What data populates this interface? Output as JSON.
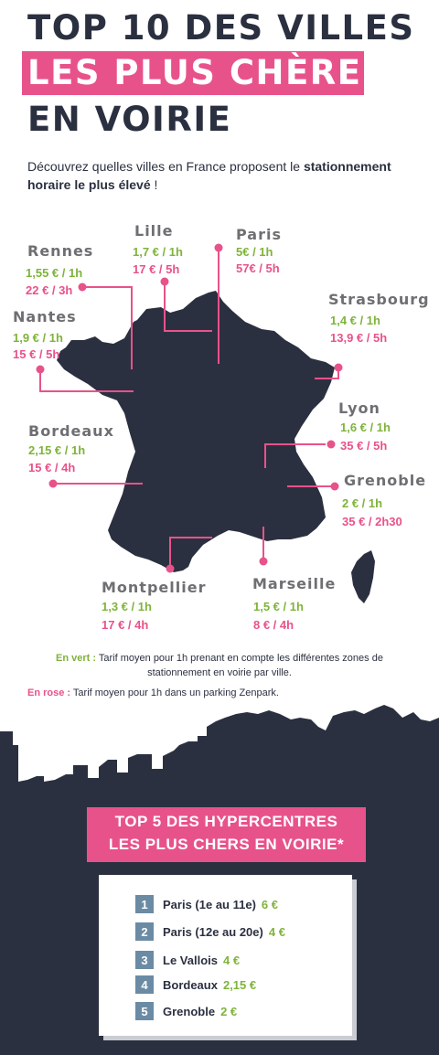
{
  "title": {
    "line1": "TOP 10 DES VILLES",
    "line2": "LES PLUS CHÈRES",
    "line3": "EN VOIRIE"
  },
  "intro": {
    "part1": "Découvrez quelles villes en France proposent le ",
    "bold": "stationnement horaire le plus élevé",
    "part2": " !"
  },
  "cities": [
    {
      "name": "Rennes",
      "green": "1,55 € / 1h",
      "pink": "22 € / 3h"
    },
    {
      "name": "Lille",
      "green": "1,7 € / 1h",
      "pink": "17 € / 5h"
    },
    {
      "name": "Paris",
      "green": "5€ / 1h",
      "pink": "57€ / 5h"
    },
    {
      "name": "Strasbourg",
      "green": "1,4 € / 1h",
      "pink": "13,9 € / 5h"
    },
    {
      "name": "Nantes",
      "green": "1,9 € / 1h",
      "pink": "15 € / 5h"
    },
    {
      "name": "Lyon",
      "green": "1,6 € / 1h",
      "pink": "35 € / 5h"
    },
    {
      "name": "Bordeaux",
      "green": "2,15 € / 1h",
      "pink": "15 € / 4h"
    },
    {
      "name": "Grenoble",
      "green": "2 € / 1h",
      "pink": "35 € / 2h30"
    },
    {
      "name": "Montpellier",
      "green": "1,3 € / 1h",
      "pink": "17 € / 4h"
    },
    {
      "name": "Marseille",
      "green": "1,5 € / 1h",
      "pink": "8 € / 4h"
    }
  ],
  "legend": {
    "green_label": "En vert :",
    "green_text1": " Tarif moyen pour 1h prenant en compte les différentes zones de",
    "green_text2": "stationnement en voirie par ville.",
    "pink_label": "En rose :",
    "pink_text": " Tarif moyen pour 1h dans un parking Zenpark."
  },
  "top5": {
    "title_line1": "TOP 5 DES HYPERCENTRES",
    "title_line2": "LES PLUS CHERS EN VOIRIE*",
    "items": [
      {
        "rank": "1",
        "name": "Paris (1e au 11e)",
        "value": "6 €"
      },
      {
        "rank": "2",
        "name": "Paris (12e au 20e)",
        "value": "4 €"
      },
      {
        "rank": "3",
        "name": "Le Vallois",
        "value": "4 €"
      },
      {
        "rank": "4",
        "name": "Bordeaux",
        "value": "2,15 €"
      },
      {
        "rank": "5",
        "name": "Grenoble",
        "value": "2 €"
      }
    ]
  },
  "colors": {
    "navy": "#2b3040",
    "pink": "#e8528a",
    "green": "#7fb33a",
    "grey_city": "#6f6f73",
    "rank_box": "#6b8ba4"
  }
}
